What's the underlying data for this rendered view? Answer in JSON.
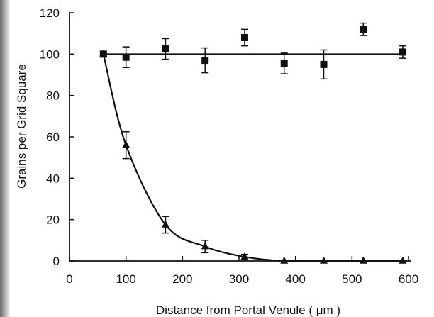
{
  "chart_data": {
    "type": "line",
    "title": "",
    "xlabel": "Distance from Portal Venule ( μm )",
    "ylabel": "Grains per Grid Square",
    "xlim": [
      0,
      600
    ],
    "ylim": [
      0,
      120
    ],
    "xticks": [
      "0",
      "100",
      "200",
      "300",
      "400",
      "500",
      "600"
    ],
    "yticks": [
      "0",
      "20",
      "40",
      "60",
      "80",
      "100",
      "120"
    ],
    "grid": false,
    "legend": "none",
    "series": [
      {
        "marker": "square",
        "x": [
          60,
          100,
          170,
          240,
          310,
          380,
          450,
          520,
          590
        ],
        "y": [
          100,
          98.5,
          102.5,
          97,
          108,
          95.5,
          95,
          112,
          101
        ],
        "err": [
          0,
          5,
          5,
          6,
          4,
          5,
          7,
          3,
          3
        ],
        "fit": "flat",
        "fit_value": 100
      },
      {
        "marker": "triangle",
        "x": [
          60,
          100,
          170,
          240,
          310,
          380,
          450,
          520,
          590
        ],
        "y": [
          100,
          56,
          17.5,
          7,
          2,
          0,
          0,
          0,
          0
        ],
        "err": [
          0,
          6.5,
          4,
          3,
          1.2,
          0,
          0,
          0,
          0
        ],
        "fit": "smooth-curve"
      }
    ],
    "colors": {
      "ink": "#111111"
    }
  }
}
